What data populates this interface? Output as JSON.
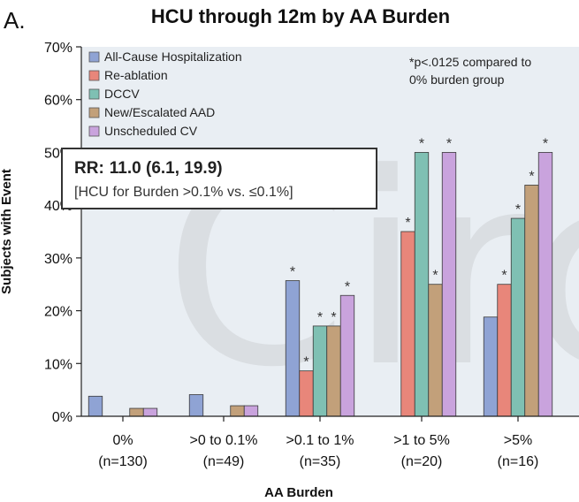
{
  "panel_letter": "A.",
  "significance_note": [
    "*p<.0125 compared to",
    "0% burden group"
  ],
  "rr_box": {
    "line1_bold": "RR:",
    "line1_value": "11.0 (6.1, 19.9)",
    "line2": "[HCU for Burden >0.1% vs. ≤0.1%]"
  },
  "watermark_text": "Circ",
  "chart_data": {
    "type": "bar",
    "title": "HCU through 12m by AA Burden",
    "xlabel": "AA Burden",
    "ylabel": "Subjects with Event",
    "ylim": [
      0,
      70
    ],
    "yticks": [
      0,
      10,
      20,
      30,
      40,
      50,
      60,
      70
    ],
    "ytick_labels": [
      "0%",
      "10%",
      "20%",
      "30%",
      "40%",
      "50%",
      "60%",
      "70%"
    ],
    "grid": false,
    "legend_position": "top-left",
    "categories": [
      [
        "0%",
        "(n=130)"
      ],
      [
        ">0 to 0.1%",
        "(n=49)"
      ],
      [
        ">0.1 to 1%",
        "(n=35)"
      ],
      [
        ">1 to 5%",
        "(n=20)"
      ],
      [
        ">5%",
        "(n=16)"
      ]
    ],
    "series": [
      {
        "name": "All-Cause Hospitalization",
        "color": "#8fa3d4",
        "values": [
          3.8,
          4.1,
          25.7,
          0,
          18.8
        ],
        "significant": [
          false,
          false,
          true,
          false,
          false
        ]
      },
      {
        "name": "Re-ablation",
        "color": "#e8867a",
        "values": [
          0,
          0,
          8.6,
          35.0,
          25.0
        ],
        "significant": [
          false,
          false,
          true,
          true,
          true
        ]
      },
      {
        "name": "DCCV",
        "color": "#7fc0b3",
        "values": [
          0,
          0,
          17.1,
          50.0,
          37.5
        ],
        "significant": [
          false,
          false,
          true,
          true,
          true
        ]
      },
      {
        "name": "New/Escalated AAD",
        "color": "#c2a07a",
        "values": [
          1.5,
          2.0,
          17.1,
          25.0,
          43.8
        ],
        "significant": [
          false,
          false,
          true,
          true,
          true
        ]
      },
      {
        "name": "Unscheduled CV",
        "color": "#c9a3dd",
        "values": [
          1.5,
          2.0,
          22.9,
          50.0,
          50.0
        ],
        "significant": [
          false,
          false,
          true,
          true,
          true
        ]
      }
    ]
  }
}
